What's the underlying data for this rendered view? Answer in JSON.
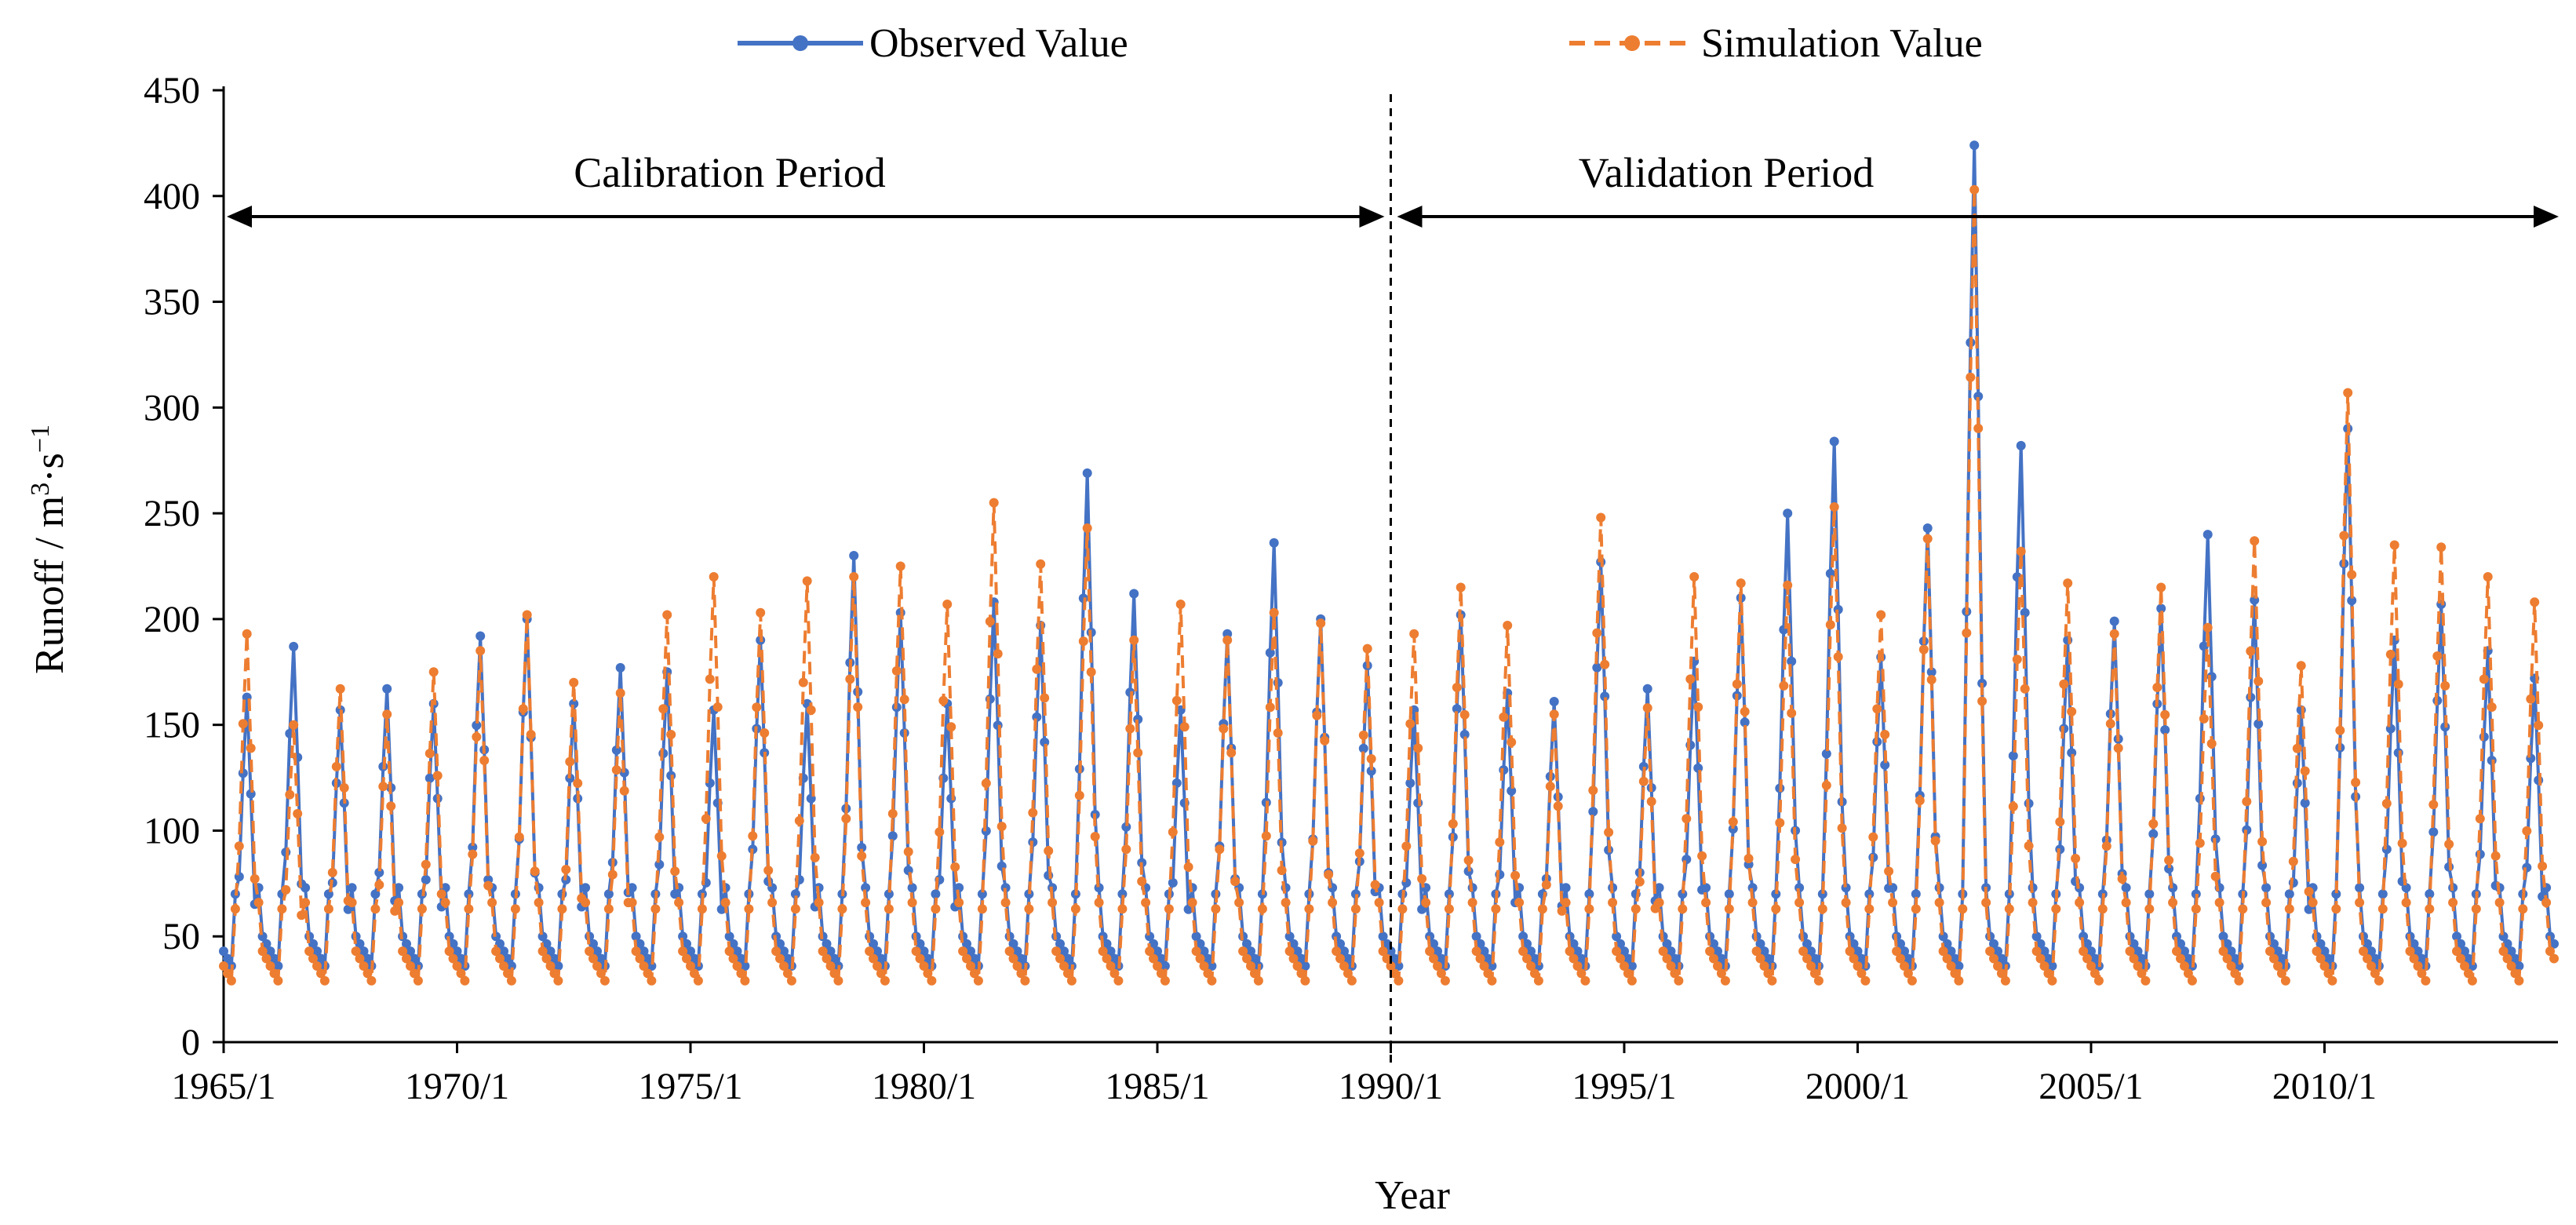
{
  "chart_data": {
    "type": "line",
    "title": "",
    "xlabel": "Year",
    "ylabel": "Runoff / m³·s⁻¹",
    "ylabel_parts": {
      "base": "Runoff / m",
      "sup1": "3",
      "mid": "·s",
      "sup2": "−1"
    },
    "ylim": [
      0,
      450
    ],
    "yticks": [
      0,
      50,
      100,
      150,
      200,
      250,
      300,
      350,
      400,
      450
    ],
    "xlim": [
      "1965/1",
      "2014/12"
    ],
    "xticks": [
      "1965/1",
      "1970/1",
      "1975/1",
      "1980/1",
      "1985/1",
      "1990/1",
      "1995/1",
      "2000/1",
      "2005/1",
      "2010/1"
    ],
    "grid": false,
    "legend": "top",
    "colors": {
      "observed": "#4472C4",
      "simulated": "#ED7D31",
      "axis": "#000000",
      "divider": "#000000"
    },
    "periods": [
      {
        "label": "Calibration Period",
        "start": "1965/1",
        "end": "1989/12"
      },
      {
        "label": "Validation Period",
        "start": "1990/1",
        "end": "2014/12"
      }
    ],
    "divider_x": "1990/1",
    "series": [
      {
        "name": "Observed Value",
        "style": "solid",
        "annual_peaks": [
          {
            "year": 1965,
            "peak": 163
          },
          {
            "year": 1966,
            "peak": 187
          },
          {
            "year": 1967,
            "peak": 157
          },
          {
            "year": 1968,
            "peak": 167
          },
          {
            "year": 1969,
            "peak": 160
          },
          {
            "year": 1970,
            "peak": 192
          },
          {
            "year": 1971,
            "peak": 200
          },
          {
            "year": 1972,
            "peak": 160
          },
          {
            "year": 1973,
            "peak": 177
          },
          {
            "year": 1974,
            "peak": 175
          },
          {
            "year": 1975,
            "peak": 157
          },
          {
            "year": 1976,
            "peak": 190
          },
          {
            "year": 1977,
            "peak": 160
          },
          {
            "year": 1978,
            "peak": 230
          },
          {
            "year": 1979,
            "peak": 203
          },
          {
            "year": 1980,
            "peak": 160
          },
          {
            "year": 1981,
            "peak": 208
          },
          {
            "year": 1982,
            "peak": 197
          },
          {
            "year": 1983,
            "peak": 269
          },
          {
            "year": 1984,
            "peak": 212
          },
          {
            "year": 1985,
            "peak": 157
          },
          {
            "year": 1986,
            "peak": 193
          },
          {
            "year": 1987,
            "peak": 236
          },
          {
            "year": 1988,
            "peak": 200
          },
          {
            "year": 1989,
            "peak": 178
          },
          {
            "year": 1990,
            "peak": 157
          },
          {
            "year": 1991,
            "peak": 202
          },
          {
            "year": 1992,
            "peak": 165
          },
          {
            "year": 1993,
            "peak": 161
          },
          {
            "year": 1994,
            "peak": 227
          },
          {
            "year": 1995,
            "peak": 167
          },
          {
            "year": 1996,
            "peak": 180
          },
          {
            "year": 1997,
            "peak": 210
          },
          {
            "year": 1998,
            "peak": 250
          },
          {
            "year": 1999,
            "peak": 284
          },
          {
            "year": 2000,
            "peak": 182
          },
          {
            "year": 2001,
            "peak": 243
          },
          {
            "year": 2002,
            "peak": 424
          },
          {
            "year": 2003,
            "peak": 282
          },
          {
            "year": 2004,
            "peak": 190
          },
          {
            "year": 2005,
            "peak": 199
          },
          {
            "year": 2006,
            "peak": 205
          },
          {
            "year": 2007,
            "peak": 240
          },
          {
            "year": 2008,
            "peak": 209
          },
          {
            "year": 2009,
            "peak": 157
          },
          {
            "year": 2010,
            "peak": 290
          },
          {
            "year": 2011,
            "peak": 190
          },
          {
            "year": 2012,
            "peak": 207
          },
          {
            "year": 2013,
            "peak": 185
          },
          {
            "year": 2014,
            "peak": 172
          }
        ],
        "annual_lows_approx": 35
      },
      {
        "name": "Simulation Value",
        "style": "dashed",
        "annual_peaks": [
          {
            "year": 1965,
            "peak": 193
          },
          {
            "year": 1966,
            "peak": 150
          },
          {
            "year": 1967,
            "peak": 167
          },
          {
            "year": 1968,
            "peak": 155
          },
          {
            "year": 1969,
            "peak": 175
          },
          {
            "year": 1970,
            "peak": 185
          },
          {
            "year": 1971,
            "peak": 202
          },
          {
            "year": 1972,
            "peak": 170
          },
          {
            "year": 1973,
            "peak": 165
          },
          {
            "year": 1974,
            "peak": 202
          },
          {
            "year": 1975,
            "peak": 220
          },
          {
            "year": 1976,
            "peak": 203
          },
          {
            "year": 1977,
            "peak": 218
          },
          {
            "year": 1978,
            "peak": 220
          },
          {
            "year": 1979,
            "peak": 225
          },
          {
            "year": 1980,
            "peak": 207
          },
          {
            "year": 1981,
            "peak": 255
          },
          {
            "year": 1982,
            "peak": 226
          },
          {
            "year": 1983,
            "peak": 243
          },
          {
            "year": 1984,
            "peak": 190
          },
          {
            "year": 1985,
            "peak": 207
          },
          {
            "year": 1986,
            "peak": 190
          },
          {
            "year": 1987,
            "peak": 203
          },
          {
            "year": 1988,
            "peak": 198
          },
          {
            "year": 1989,
            "peak": 186
          },
          {
            "year": 1990,
            "peak": 193
          },
          {
            "year": 1991,
            "peak": 215
          },
          {
            "year": 1992,
            "peak": 197
          },
          {
            "year": 1993,
            "peak": 155
          },
          {
            "year": 1994,
            "peak": 248
          },
          {
            "year": 1995,
            "peak": 158
          },
          {
            "year": 1996,
            "peak": 220
          },
          {
            "year": 1997,
            "peak": 217
          },
          {
            "year": 1998,
            "peak": 216
          },
          {
            "year": 1999,
            "peak": 253
          },
          {
            "year": 2000,
            "peak": 202
          },
          {
            "year": 2001,
            "peak": 238
          },
          {
            "year": 2002,
            "peak": 403
          },
          {
            "year": 2003,
            "peak": 232
          },
          {
            "year": 2004,
            "peak": 217
          },
          {
            "year": 2005,
            "peak": 193
          },
          {
            "year": 2006,
            "peak": 215
          },
          {
            "year": 2007,
            "peak": 196
          },
          {
            "year": 2008,
            "peak": 237
          },
          {
            "year": 2009,
            "peak": 178
          },
          {
            "year": 2010,
            "peak": 307
          },
          {
            "year": 2011,
            "peak": 235
          },
          {
            "year": 2012,
            "peak": 234
          },
          {
            "year": 2013,
            "peak": 220
          },
          {
            "year": 2014,
            "peak": 208
          }
        ],
        "annual_lows_approx": 28
      }
    ]
  }
}
